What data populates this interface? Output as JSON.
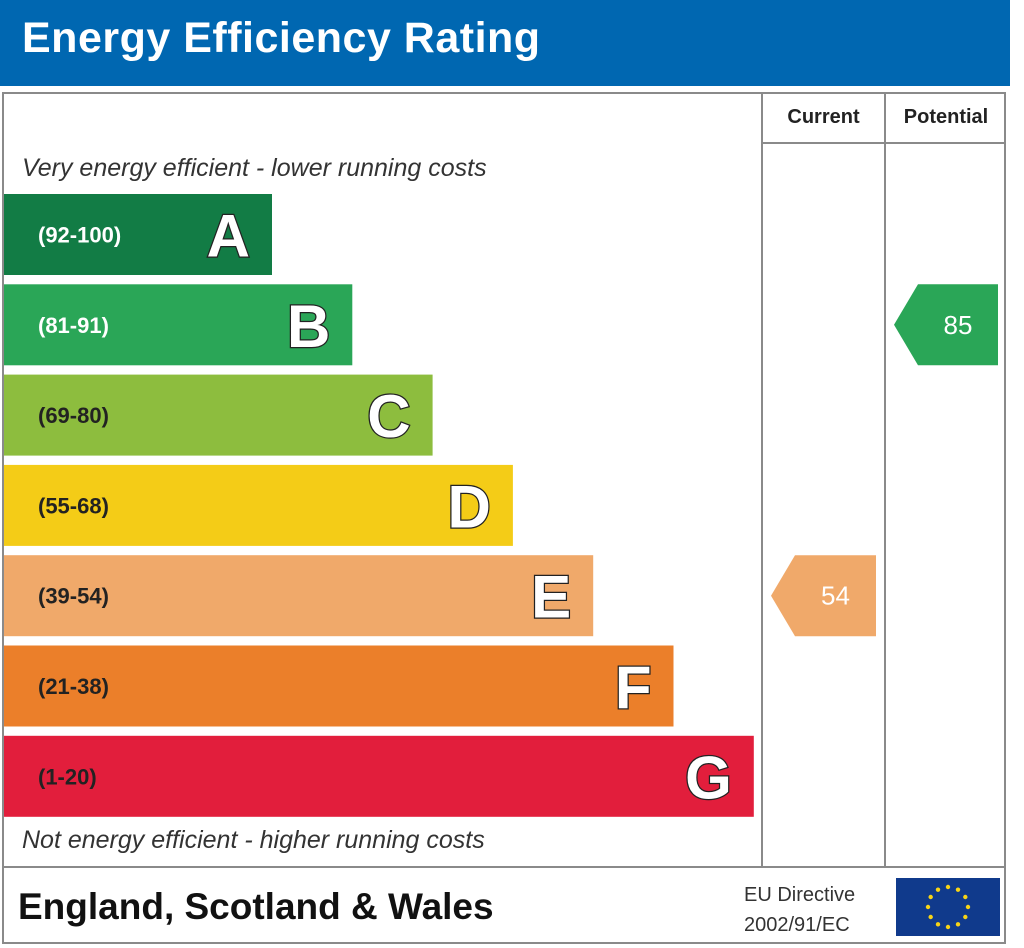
{
  "header": {
    "title": "Energy Efficiency Rating"
  },
  "columns": {
    "current": "Current",
    "potential": "Potential"
  },
  "notes": {
    "top": "Very energy efficient - lower running costs",
    "bottom": "Not energy efficient - higher running costs"
  },
  "footer": {
    "region": "England, Scotland & Wales",
    "directive_line1": "EU Directive",
    "directive_line2": "2002/91/EC",
    "flag_icon": "eu-flag-icon"
  },
  "chart_data": {
    "type": "bar",
    "bands": [
      {
        "letter": "A",
        "range": "(92-100)",
        "min": 92,
        "max": 100,
        "color": "#127c45"
      },
      {
        "letter": "B",
        "range": "(81-91)",
        "min": 81,
        "max": 91,
        "color": "#2aa657"
      },
      {
        "letter": "C",
        "range": "(69-80)",
        "min": 69,
        "max": 80,
        "color": "#8dbd3e"
      },
      {
        "letter": "D",
        "range": "(55-68)",
        "min": 55,
        "max": 68,
        "color": "#f4cc17"
      },
      {
        "letter": "E",
        "range": "(39-54)",
        "min": 39,
        "max": 54,
        "color": "#f0a96a"
      },
      {
        "letter": "F",
        "range": "(21-38)",
        "min": 21,
        "max": 38,
        "color": "#eb7f2a"
      },
      {
        "letter": "G",
        "range": "(1-20)",
        "min": 1,
        "max": 20,
        "color": "#e21e3c"
      }
    ],
    "current": {
      "value": 54,
      "band": "E",
      "color": "#f0a96a"
    },
    "potential": {
      "value": 85,
      "band": "B",
      "color": "#2aa657"
    }
  }
}
